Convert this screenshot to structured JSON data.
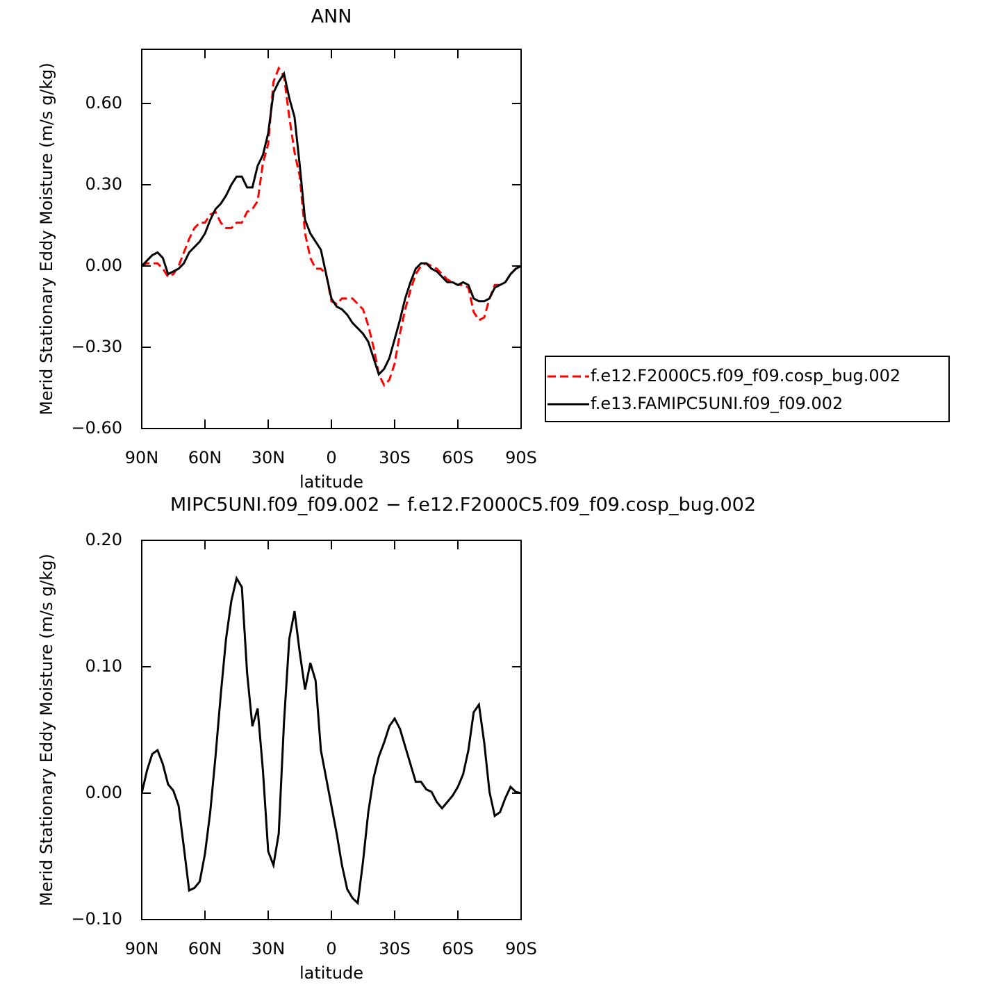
{
  "chart_data": [
    {
      "type": "line",
      "title": "ANN",
      "xlabel": "latitude",
      "ylabel": "Merid Stationary Eddy Moisture (m/s g/kg)",
      "xlim": [
        90,
        -90
      ],
      "xticks": [
        {
          "value": 90,
          "label": "90N"
        },
        {
          "value": 60,
          "label": "60N"
        },
        {
          "value": 30,
          "label": "30N"
        },
        0,
        {
          "value": -30,
          "label": "30S"
        },
        {
          "value": -60,
          "label": "60S"
        },
        {
          "value": -90,
          "label": "90S"
        }
      ],
      "ylim": [
        -0.6,
        0.8
      ],
      "yticks": [
        {
          "value": -0.6,
          "label": "−0.60"
        },
        {
          "value": -0.3,
          "label": "−0.30"
        },
        {
          "value": 0,
          "label": "0.00"
        },
        {
          "value": 0.3,
          "label": "0.30"
        },
        {
          "value": 0.6,
          "label": "0.60"
        }
      ],
      "legend": "right",
      "x": [
        90,
        87.5,
        85,
        82.5,
        80,
        77.5,
        75,
        72.5,
        70,
        67.5,
        65,
        62.5,
        60,
        57.5,
        55,
        52.5,
        50,
        47.5,
        45,
        42.5,
        40,
        37.5,
        35,
        32.5,
        30,
        27.5,
        25,
        22.5,
        20,
        17.5,
        15,
        12.5,
        10,
        7.5,
        5,
        2.5,
        0,
        -2.5,
        -5,
        -7.5,
        -10,
        -12.5,
        -15,
        -17.5,
        -20,
        -22.5,
        -25,
        -27.5,
        -30,
        -32.5,
        -35,
        -37.5,
        -40,
        -42.5,
        -45,
        -47.5,
        -50,
        -52.5,
        -55,
        -57.5,
        -60,
        -62.5,
        -65,
        -67.5,
        -70,
        -72.5,
        -75,
        -77.5,
        -80,
        -82.5,
        -85,
        -87.5,
        -90
      ],
      "series": [
        {
          "name": "f.e12.F2000C5.f09_f09.cosp_bug.002",
          "color": "#ff0000",
          "linestyle": "dashed",
          "values": [
            0,
            0.01,
            0.01,
            0.01,
            -0.01,
            -0.04,
            -0.03,
            0,
            0.05,
            0.1,
            0.14,
            0.16,
            0.16,
            0.19,
            0.2,
            0.16,
            0.14,
            0.14,
            0.16,
            0.16,
            0.2,
            0.21,
            0.24,
            0.38,
            0.45,
            0.68,
            0.73,
            0.7,
            0.55,
            0.42,
            0.33,
            0.12,
            0.03,
            -0.01,
            -0.01,
            -0.03,
            -0.13,
            -0.14,
            -0.12,
            -0.12,
            -0.12,
            -0.14,
            -0.16,
            -0.22,
            -0.3,
            -0.4,
            -0.44,
            -0.42,
            -0.36,
            -0.25,
            -0.16,
            -0.09,
            -0.03,
            0,
            0.01,
            0,
            -0.01,
            -0.03,
            -0.05,
            -0.06,
            -0.07,
            -0.07,
            -0.08,
            -0.17,
            -0.2,
            -0.19,
            -0.12,
            -0.07,
            -0.07,
            -0.06,
            -0.03,
            -0.01,
            0
          ]
        },
        {
          "name": "f.e13.FAMIPC5UNI.f09_f09.002",
          "color": "#000000",
          "linestyle": "solid",
          "values": [
            0,
            0.02,
            0.04,
            0.05,
            0.03,
            -0.03,
            -0.02,
            -0.01,
            0.01,
            0.05,
            0.07,
            0.09,
            0.12,
            0.17,
            0.21,
            0.23,
            0.26,
            0.3,
            0.33,
            0.33,
            0.29,
            0.29,
            0.37,
            0.41,
            0.49,
            0.64,
            0.68,
            0.71,
            0.62,
            0.55,
            0.37,
            0.17,
            0.12,
            0.09,
            0.06,
            -0.03,
            -0.12,
            -0.15,
            -0.16,
            -0.18,
            -0.21,
            -0.23,
            -0.25,
            -0.28,
            -0.34,
            -0.4,
            -0.38,
            -0.34,
            -0.27,
            -0.2,
            -0.12,
            -0.06,
            -0.01,
            0.01,
            0.01,
            -0.01,
            -0.02,
            -0.04,
            -0.06,
            -0.06,
            -0.07,
            -0.06,
            -0.07,
            -0.12,
            -0.13,
            -0.13,
            -0.12,
            -0.08,
            -0.07,
            -0.06,
            -0.03,
            -0.01,
            0
          ]
        }
      ]
    },
    {
      "type": "line",
      "title": "MIPC5UNI.f09_f09.002 − f.e12.F2000C5.f09_f09.cosp_bug.002",
      "xlabel": "latitude",
      "ylabel": "Merid Stationary Eddy Moisture (m/s g/kg)",
      "xlim": [
        90,
        -90
      ],
      "xticks": [
        {
          "value": 90,
          "label": "90N"
        },
        {
          "value": 60,
          "label": "60N"
        },
        {
          "value": 30,
          "label": "30N"
        },
        0,
        {
          "value": -30,
          "label": "30S"
        },
        {
          "value": -60,
          "label": "60S"
        },
        {
          "value": -90,
          "label": "90S"
        }
      ],
      "ylim": [
        -0.1,
        0.2
      ],
      "yticks": [
        {
          "value": -0.1,
          "label": "−0.10"
        },
        {
          "value": 0,
          "label": "0.00"
        },
        {
          "value": 0.1,
          "label": "0.10"
        },
        {
          "value": 0.2,
          "label": "0.20"
        }
      ],
      "x": [
        90,
        87.5,
        85,
        82.5,
        80,
        77.5,
        75,
        72.5,
        70,
        67.5,
        65,
        62.5,
        60,
        57.5,
        55,
        52.5,
        50,
        47.5,
        45,
        42.5,
        40,
        37.5,
        35,
        32.5,
        30,
        27.5,
        25,
        22.5,
        20,
        17.5,
        15,
        12.5,
        10,
        7.5,
        5,
        2.5,
        0,
        -2.5,
        -5,
        -7.5,
        -10,
        -12.5,
        -15,
        -17.5,
        -20,
        -22.5,
        -25,
        -27.5,
        -30,
        -32.5,
        -35,
        -37.5,
        -40,
        -42.5,
        -45,
        -47.5,
        -50,
        -52.5,
        -55,
        -57.5,
        -60,
        -62.5,
        -65,
        -67.5,
        -70,
        -72.5,
        -75,
        -77.5,
        -80,
        -82.5,
        -85,
        -87.5,
        -90
      ],
      "series": [
        {
          "color": "#000000",
          "linestyle": "solid",
          "values": [
            0,
            0.018,
            0.031,
            0.034,
            0.023,
            0.007,
            0.002,
            -0.01,
            -0.043,
            -0.077,
            -0.075,
            -0.07,
            -0.048,
            -0.015,
            0.029,
            0.078,
            0.122,
            0.152,
            0.17,
            0.163,
            0.095,
            0.053,
            0.067,
            0.018,
            -0.046,
            -0.057,
            -0.032,
            0.056,
            0.122,
            0.144,
            0.111,
            0.082,
            0.103,
            0.089,
            0.034,
            0.012,
            -0.01,
            -0.032,
            -0.057,
            -0.076,
            -0.083,
            -0.087,
            -0.054,
            -0.015,
            0.012,
            0.029,
            0.04,
            0.053,
            0.059,
            0.051,
            0.037,
            0.023,
            0.009,
            0.009,
            0.003,
            0.001,
            -0.007,
            -0.012,
            -0.007,
            -0.002,
            0.005,
            0.015,
            0.034,
            0.064,
            0.07,
            0.04,
            0.001,
            -0.018,
            -0.015,
            -0.004,
            0.005,
            0.001,
            0
          ]
        }
      ]
    }
  ]
}
